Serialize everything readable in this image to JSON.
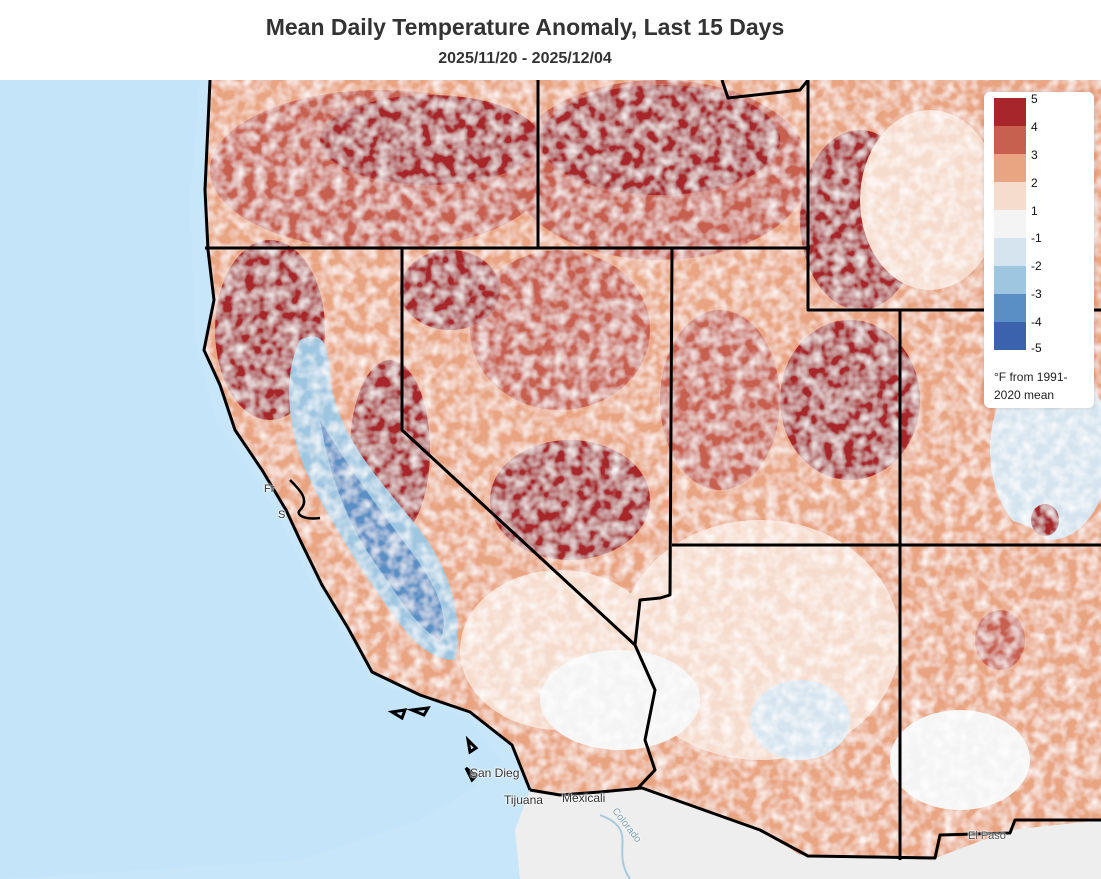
{
  "header": {
    "title": "Mean Daily Temperature Anomaly, Last 15 Days",
    "subtitle": "2025/11/20 - 2025/12/04"
  },
  "legend": {
    "ticks": [
      "5",
      "4",
      "3",
      "2",
      "1",
      "-1",
      "-2",
      "-3",
      "-4",
      "-5"
    ],
    "colors": [
      "#a7262b",
      "#c8604f",
      "#e9a481",
      "#f6dccd",
      "#f4f4f4",
      "#d6e4ef",
      "#9fc6e0",
      "#5a8fc5",
      "#3b62ac"
    ],
    "note": "°F from 1991-2020 mean"
  },
  "map": {
    "ocean_color": "#c7e6f9",
    "land_color": "#eeeeee",
    "boundary_color": "#000000",
    "labels": {
      "san_diego": "San Dieg",
      "tijuana": "Tijuana",
      "mexicali": "Mexicali",
      "colorado": "Colorado",
      "el_paso": "El Paso",
      "sf_1": "Fr",
      "sf_2": "S"
    }
  }
}
